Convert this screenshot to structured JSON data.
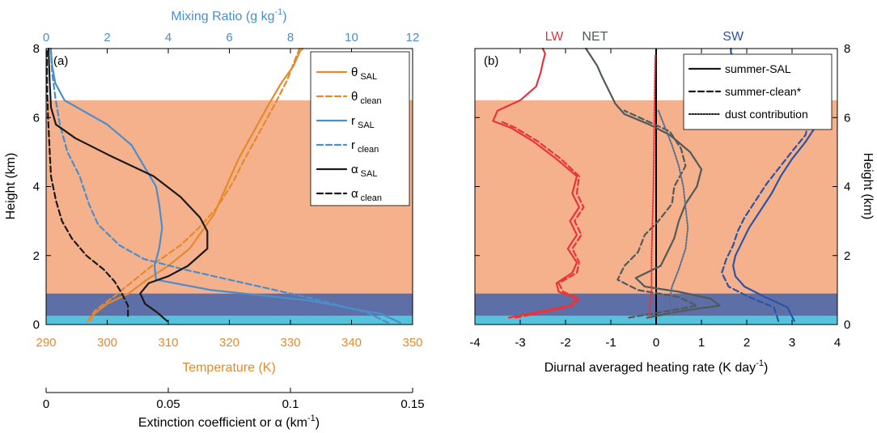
{
  "colors": {
    "sal_layer": "#F5B08C",
    "marine_layer": "#5E6FA8",
    "surface_layer": "#55C3DE",
    "theta": "#E6892B",
    "mixing": "#4A8ECB",
    "alpha": "#1A1A1A",
    "lw": "#E8343A",
    "net": "#4F5A5A",
    "sw": "#2A55A6",
    "dust": "#5A6E8C"
  },
  "chart_data": [
    {
      "type": "line",
      "panel_label": "(a)",
      "ylabel": "Height (km)",
      "ylim": [
        0,
        8
      ],
      "yticks": [
        "0",
        "2",
        "4",
        "6",
        "8"
      ],
      "x_axes": {
        "temperature": {
          "label": "Temperature (K)",
          "lim": [
            290,
            350
          ],
          "ticks": [
            "290",
            "300",
            "310",
            "320",
            "330",
            "340",
            "350"
          ]
        },
        "mixing_ratio": {
          "label_main": "Mixing Ratio (g kg",
          "label_sup": "-1",
          "label_end": ")",
          "lim": [
            0,
            12
          ],
          "ticks": [
            "0",
            "2",
            "4",
            "6",
            "8",
            "10",
            "12"
          ]
        },
        "extinction": {
          "label_main": "Extinction coefficient or α (km",
          "label_sup": "-1",
          "label_end": ")",
          "lim": [
            0,
            0.15
          ],
          "ticks": [
            "0",
            "0.05",
            "0.1",
            "0.15"
          ]
        }
      },
      "layers": [
        {
          "name": "sal",
          "from": 0.9,
          "to": 6.5
        },
        {
          "name": "marine",
          "from": 0.25,
          "to": 0.9
        },
        {
          "name": "surface",
          "from": 0,
          "to": 0.25
        }
      ],
      "series": [
        {
          "key": "theta_sal",
          "legend": "θ",
          "sub": "SAL",
          "axis": "temperature",
          "style": "solid",
          "color_key": "theta",
          "x": [
            297.2,
            297.8,
            300,
            303.5,
            306.5,
            310,
            313.5,
            315.5,
            317.5,
            319.5,
            321.5,
            324,
            326.5,
            328.5,
            330.5,
            331.5,
            332
          ],
          "y": [
            0.1,
            0.3,
            0.6,
            0.9,
            1.3,
            1.7,
            2.2,
            2.7,
            3.2,
            4.0,
            4.8,
            5.6,
            6.4,
            7.0,
            7.5,
            7.9,
            8
          ]
        },
        {
          "key": "theta_clean",
          "legend": "θ",
          "sub": "clean",
          "axis": "temperature",
          "style": "dashed",
          "color_key": "theta",
          "x": [
            296.8,
            298,
            301,
            304.5,
            308,
            312,
            315,
            318,
            320.5,
            322.5,
            325,
            327.5,
            329.5,
            330.8,
            331.5
          ],
          "y": [
            0.1,
            0.4,
            0.8,
            1.3,
            1.8,
            2.3,
            2.8,
            3.4,
            4.1,
            4.8,
            5.6,
            6.4,
            7.1,
            7.7,
            8
          ]
        },
        {
          "key": "r_sal",
          "legend": "r",
          "sub": "SAL",
          "axis": "mixing_ratio",
          "style": "solid",
          "color_key": "mixing",
          "x": [
            11.6,
            11.0,
            8.6,
            5.4,
            3.6,
            3.55,
            3.7,
            3.8,
            3.7,
            3.6,
            3.2,
            2.8,
            2.0,
            1.2,
            0.6,
            0.3,
            0.2,
            0.15
          ],
          "y": [
            0.05,
            0.3,
            0.7,
            1.0,
            1.3,
            1.7,
            2.2,
            2.8,
            3.5,
            4.0,
            4.6,
            5.2,
            5.8,
            6.2,
            6.5,
            7.0,
            7.5,
            8
          ]
        },
        {
          "key": "r_clean",
          "legend": "r",
          "sub": "clean",
          "axis": "mixing_ratio",
          "style": "dashed",
          "color_key": "mixing",
          "x": [
            11.2,
            10.5,
            8.5,
            6.5,
            4.5,
            3.2,
            2.4,
            1.7,
            1.4,
            1.1,
            0.7,
            0.45,
            0.3,
            0.2,
            0.15
          ],
          "y": [
            0.05,
            0.35,
            0.8,
            1.2,
            1.6,
            1.9,
            2.3,
            2.9,
            3.5,
            4.3,
            5.0,
            5.8,
            6.6,
            7.3,
            8
          ]
        },
        {
          "key": "alpha_sal",
          "legend": "α",
          "sub": "SAL",
          "axis": "extinction",
          "style": "solid",
          "color_key": "alpha",
          "x": [
            0.0495,
            0.0455,
            0.0405,
            0.0385,
            0.042,
            0.05,
            0.058,
            0.066,
            0.066,
            0.063,
            0.055,
            0.044,
            0.026,
            0.012,
            0.004,
            0.002,
            0.0015,
            0.001
          ],
          "y": [
            0.1,
            0.35,
            0.6,
            0.9,
            1.2,
            1.4,
            1.7,
            2.2,
            2.7,
            3.1,
            3.7,
            4.3,
            4.9,
            5.4,
            5.8,
            6.3,
            7.0,
            8
          ]
        },
        {
          "key": "alpha_clean",
          "legend": "α",
          "sub": "clean",
          "axis": "extinction",
          "style": "dashed",
          "color_key": "alpha",
          "x": [
            0.0335,
            0.0335,
            0.031,
            0.028,
            0.0235,
            0.0165,
            0.0105,
            0.0065,
            0.004,
            0.002,
            0.0015,
            0.0008,
            0.0004,
            0.0003
          ],
          "y": [
            0.25,
            0.55,
            0.9,
            1.25,
            1.6,
            2.0,
            2.5,
            3.0,
            3.6,
            4.3,
            5.0,
            6.0,
            7.0,
            8
          ]
        }
      ]
    },
    {
      "type": "line",
      "panel_label": "(b)",
      "xlabel_main": "Diurnal averaged heating rate (K day",
      "xlabel_sup": "-1",
      "xlabel_end": ")",
      "ylabel": "Height (km)",
      "xlim": [
        -4,
        4
      ],
      "ylim": [
        0,
        8
      ],
      "xticks": [
        "-4",
        "-3",
        "-2",
        "-1",
        "0",
        "1",
        "2",
        "3",
        "4"
      ],
      "yticks": [
        "0",
        "2",
        "4",
        "6",
        "8"
      ],
      "top_labels": [
        {
          "text": "LW",
          "x": -2.25,
          "color_key": "lw"
        },
        {
          "text": "NET",
          "x": -1.35,
          "color_key": "net"
        },
        {
          "text": "SW",
          "x": 1.7,
          "color_key": "sw"
        }
      ],
      "legend": [
        {
          "label": "summer-SAL",
          "style": "solid"
        },
        {
          "label": "summer-clean*",
          "style": "dashed"
        },
        {
          "label": "dust contribution",
          "style": "dotted"
        }
      ],
      "layers": [
        {
          "name": "sal",
          "from": 0.9,
          "to": 6.5
        },
        {
          "name": "marine",
          "from": 0.25,
          "to": 0.9
        },
        {
          "name": "surface",
          "from": 0,
          "to": 0.25
        }
      ],
      "series": [
        {
          "key": "lw_sal",
          "style": "solid",
          "color_key": "lw",
          "x": [
            -3.25,
            -2.5,
            -1.9,
            -1.75,
            -2.15,
            -2.2,
            -1.85,
            -1.75,
            -1.95,
            -1.75,
            -1.9,
            -1.7,
            -1.85,
            -1.75,
            -2.2,
            -2.7,
            -3.2,
            -3.6,
            -3.5,
            -3.0,
            -2.65,
            -2.55,
            -2.5,
            -2.45,
            -2.5
          ],
          "y": [
            0.2,
            0.4,
            0.55,
            0.75,
            0.95,
            1.2,
            1.5,
            1.8,
            2.2,
            2.6,
            3.0,
            3.4,
            3.8,
            4.3,
            4.8,
            5.3,
            5.7,
            5.9,
            6.2,
            6.5,
            6.9,
            7.3,
            7.6,
            7.85,
            8
          ]
        },
        {
          "key": "lw_clean",
          "style": "dashed",
          "color_key": "lw",
          "x": [
            -3.1,
            -2.3,
            -1.85,
            -1.7,
            -2.05,
            -2.15,
            -1.75,
            -1.7,
            -1.85,
            -1.65,
            -1.8,
            -1.6,
            -1.75,
            -1.7,
            -2.1,
            -2.6,
            -3.1,
            -3.45
          ],
          "y": [
            0.2,
            0.4,
            0.55,
            0.75,
            0.95,
            1.2,
            1.5,
            1.8,
            2.2,
            2.6,
            3.0,
            3.4,
            3.8,
            4.3,
            4.8,
            5.3,
            5.7,
            5.9
          ]
        },
        {
          "key": "net_sal",
          "style": "solid",
          "color_key": "net",
          "x": [
            -0.2,
            0.6,
            1.4,
            1.2,
            0.5,
            -0.25,
            -0.45,
            0.1,
            0.25,
            0.4,
            0.5,
            0.65,
            0.9,
            1.0,
            0.75,
            0.3,
            -0.15,
            -0.7,
            -0.9,
            -1.05,
            -1.2,
            -1.3,
            -1.45,
            -1.55
          ],
          "y": [
            0.2,
            0.4,
            0.55,
            0.75,
            0.95,
            1.1,
            1.35,
            1.7,
            2.1,
            2.5,
            3.0,
            3.5,
            4.0,
            4.5,
            5.0,
            5.5,
            5.8,
            6.1,
            6.4,
            6.8,
            7.2,
            7.5,
            7.8,
            8
          ]
        },
        {
          "key": "net_clean",
          "style": "dashed",
          "color_key": "net",
          "x": [
            -0.6,
            0.3,
            0.9,
            0.5,
            -0.4,
            -0.85,
            -0.7,
            -0.4,
            -0.25,
            0.05,
            0.35,
            0.4,
            0.65,
            0.55,
            0.3,
            -0.2,
            -0.7
          ],
          "y": [
            0.2,
            0.4,
            0.55,
            0.8,
            1.0,
            1.3,
            1.7,
            2.1,
            2.6,
            3.0,
            3.5,
            4.0,
            4.6,
            5.1,
            5.6,
            5.9,
            6.2
          ]
        },
        {
          "key": "sw_sal",
          "style": "solid",
          "color_key": "sw",
          "x": [
            3.05,
            2.9,
            2.4,
            1.95,
            1.75,
            1.7,
            1.75,
            1.9,
            2.05,
            2.3,
            2.55,
            2.75,
            3.0,
            3.3,
            3.55,
            3.5,
            3.0,
            2.4,
            2.0,
            1.85,
            1.7,
            1.65,
            1.65
          ],
          "y": [
            0.1,
            0.5,
            0.8,
            1.1,
            1.4,
            1.7,
            2.0,
            2.4,
            2.8,
            3.3,
            3.8,
            4.3,
            4.8,
            5.3,
            5.8,
            6.2,
            6.5,
            6.8,
            7.1,
            7.4,
            7.7,
            7.9,
            8
          ]
        },
        {
          "key": "sw_clean",
          "style": "dashed",
          "color_key": "sw",
          "x": [
            2.7,
            2.6,
            2.05,
            1.6,
            1.45,
            1.55,
            1.7,
            1.8,
            1.95,
            2.2,
            2.45,
            2.75,
            3.05,
            3.3,
            3.35,
            3.0
          ],
          "y": [
            0.1,
            0.5,
            0.8,
            1.1,
            1.5,
            1.9,
            2.3,
            2.7,
            3.1,
            3.6,
            4.1,
            4.6,
            5.1,
            5.5,
            5.8,
            6.1
          ]
        },
        {
          "key": "dust_sw",
          "style": "dotted",
          "color_key": "dust",
          "x": [
            0.35,
            0.3,
            0.35,
            0.5,
            0.65,
            0.7,
            0.65,
            0.6,
            0.5,
            0.35,
            0.2,
            0.05
          ],
          "y": [
            0.3,
            0.7,
            1.1,
            1.6,
            2.2,
            2.8,
            3.4,
            4.0,
            4.6,
            5.2,
            5.7,
            6.2
          ]
        },
        {
          "key": "dust_lw",
          "style": "dotted",
          "color_key": "lw",
          "x": [
            -0.15,
            -0.1,
            -0.1,
            -0.08,
            -0.06,
            -0.05,
            -0.04,
            -0.03,
            -0.02
          ],
          "y": [
            0.3,
            1.0,
            2.0,
            3.0,
            4.0,
            5.0,
            6.0,
            7.0,
            7.8
          ]
        }
      ]
    }
  ]
}
